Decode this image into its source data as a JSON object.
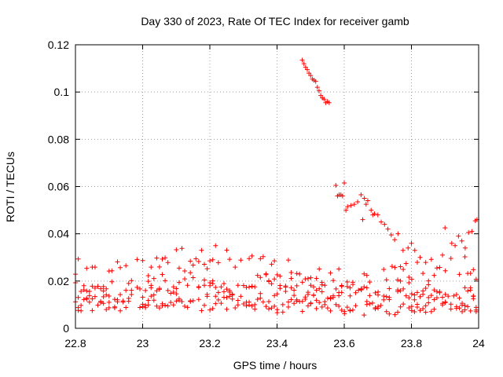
{
  "chart_data": {
    "type": "scatter",
    "title": "Day 330 of 2023, Rate Of TEC Index for receiver gamb",
    "xlabel": "GPS time / hours",
    "ylabel": "ROTI / TECUs",
    "xlim": [
      22.8,
      24
    ],
    "ylim": [
      0,
      0.12
    ],
    "xticks": [
      22.8,
      23,
      23.2,
      23.4,
      23.6,
      23.8,
      24
    ],
    "xtick_labels": [
      "22.8",
      "23",
      "23.2",
      "23.4",
      "23.6",
      "23.8",
      "24"
    ],
    "yticks": [
      0,
      0.02,
      0.04,
      0.06,
      0.08,
      0.1,
      0.12
    ],
    "ytick_labels": [
      "0",
      "0.02",
      "0.04",
      "0.06",
      "0.08",
      "0.1",
      "0.12"
    ],
    "grid": true,
    "marker": "plus",
    "color": "#ff0000",
    "series": [
      {
        "x": [
          23.475,
          23.48,
          23.485,
          23.49,
          23.495,
          23.5,
          23.505,
          23.51,
          23.515,
          23.52,
          23.525,
          23.53,
          23.535,
          23.54,
          23.545,
          23.55,
          23.555,
          23.575,
          23.58,
          23.585,
          23.59,
          23.595,
          23.6,
          23.605,
          23.61,
          23.62,
          23.63,
          23.64,
          23.65,
          23.655,
          23.66,
          23.665,
          23.67,
          23.68,
          23.685,
          23.69,
          23.7,
          23.71,
          23.72,
          23.73,
          23.74,
          23.75,
          23.76,
          23.775,
          23.79,
          23.8,
          23.81,
          23.9,
          23.92,
          23.93,
          23.94,
          23.95,
          23.96,
          23.97,
          23.98,
          23.99,
          23.995
        ],
        "y": [
          0.1135,
          0.112,
          0.1105,
          0.1095,
          0.108,
          0.107,
          0.1055,
          0.105,
          0.1045,
          0.102,
          0.1005,
          0.0985,
          0.0975,
          0.097,
          0.0955,
          0.096,
          0.0955,
          0.0605,
          0.056,
          0.0565,
          0.0565,
          0.056,
          0.0615,
          0.05,
          0.0515,
          0.052,
          0.0525,
          0.0535,
          0.0565,
          0.046,
          0.055,
          0.0525,
          0.054,
          0.05,
          0.048,
          0.0485,
          0.048,
          0.045,
          0.044,
          0.042,
          0.0395,
          0.0375,
          0.04,
          0.033,
          0.034,
          0.036,
          0.033,
          0.0425,
          0.036,
          0.035,
          0.039,
          0.037,
          0.034,
          0.0405,
          0.041,
          0.0455,
          0.046
        ]
      }
    ],
    "bulk": {
      "x_start": 22.8,
      "x_end": 23.995,
      "tracks": [
        {
          "x": [
            22.8,
            22.9,
            23.0,
            23.1,
            23.2,
            23.3,
            23.4,
            23.5,
            23.6,
            23.7,
            23.8,
            23.9,
            24.0
          ],
          "y": [
            0.012,
            0.015,
            0.018,
            0.02,
            0.017,
            0.013,
            0.012,
            0.013,
            0.012,
            0.014,
            0.016,
            0.014,
            0.012
          ],
          "spread": 0.005
        },
        {
          "x": [
            22.8,
            22.9,
            23.0,
            23.1,
            23.2,
            23.3,
            23.4,
            23.5,
            23.6,
            23.7,
            23.8,
            23.9,
            24.0
          ],
          "y": [
            0.018,
            0.013,
            0.012,
            0.013,
            0.016,
            0.019,
            0.018,
            0.017,
            0.015,
            0.013,
            0.012,
            0.011,
            0.013
          ],
          "spread": 0.005
        },
        {
          "x": [
            22.8,
            22.9,
            23.0,
            23.1,
            23.2,
            23.3,
            23.4,
            23.5,
            23.6,
            23.7,
            23.8,
            23.9,
            24.0
          ],
          "y": [
            0.024,
            0.022,
            0.026,
            0.028,
            0.03,
            0.027,
            0.024,
            0.022,
            0.02,
            0.018,
            0.024,
            0.026,
            0.024
          ],
          "spread": 0.006
        },
        {
          "x": [
            22.8,
            22.9,
            23.0,
            23.1,
            23.2,
            23.3,
            23.4,
            23.5,
            23.6,
            23.7,
            23.8,
            23.9,
            24.0
          ],
          "y": [
            0.01,
            0.009,
            0.011,
            0.012,
            0.01,
            0.012,
            0.009,
            0.01,
            0.009,
            0.008,
            0.009,
            0.009,
            0.01
          ],
          "spread": 0.003
        }
      ]
    }
  }
}
